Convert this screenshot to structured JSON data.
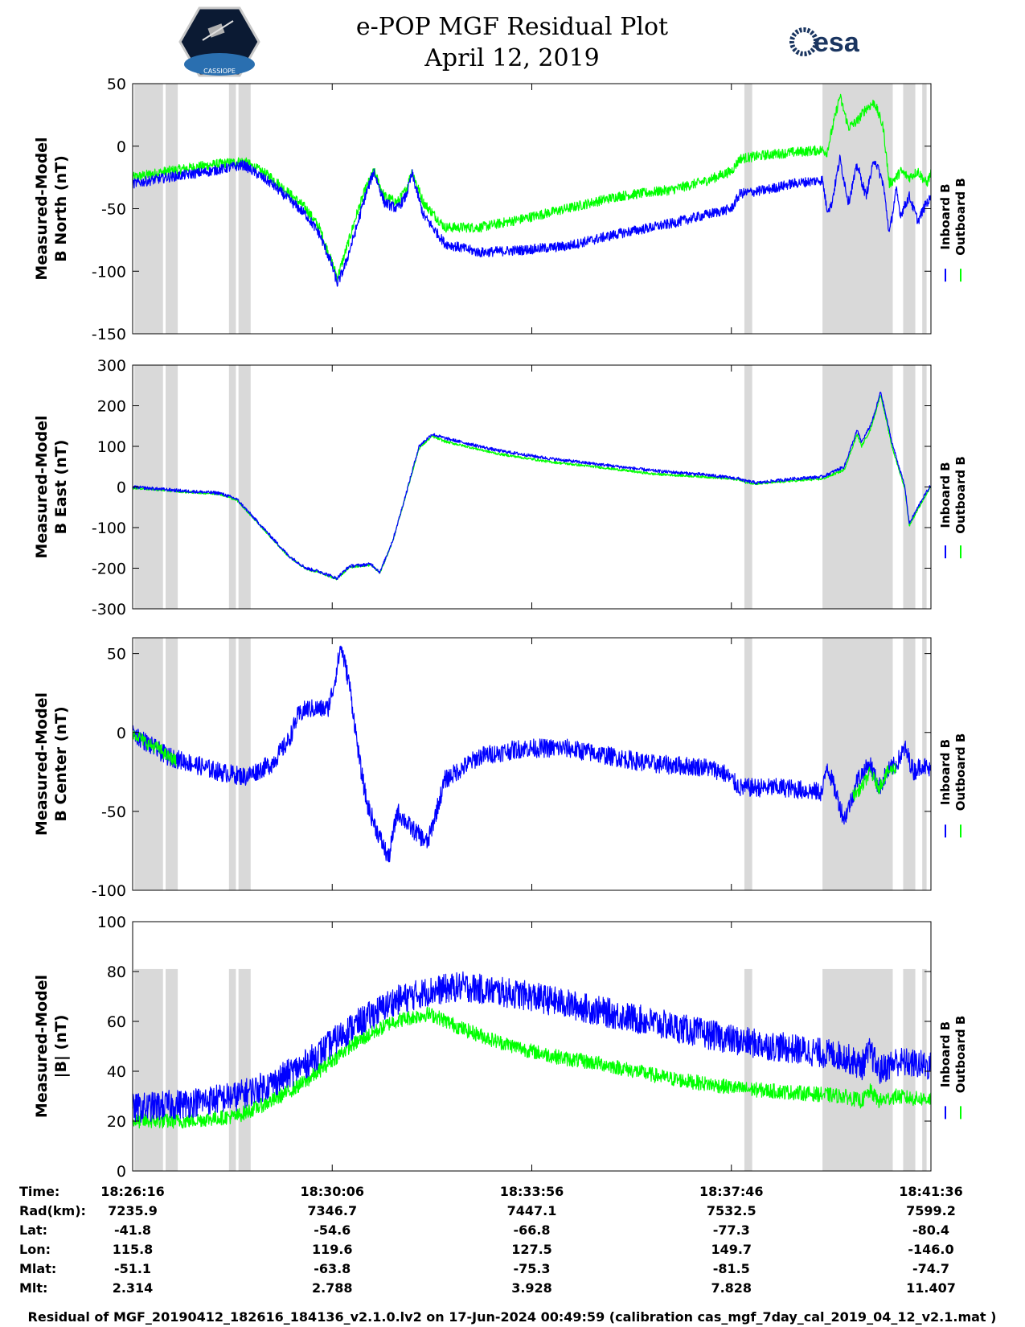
{
  "title": "e-POP MGF Residual Plot",
  "date": "April 12, 2019",
  "logos": {
    "left_text": "CASSIOPE",
    "right_text": "esa"
  },
  "colors": {
    "inboard": "#0000ff",
    "outboard": "#00ff00",
    "shade": "#d9d9d9",
    "cassiope_bg": "#0b1a33"
  },
  "time_axis": {
    "labels": [
      "18:26:16",
      "18:30:06",
      "18:33:56",
      "18:37:46",
      "18:41:36"
    ],
    "range_seconds": [
      0,
      920
    ],
    "tick_seconds": [
      0,
      230,
      460,
      690,
      920
    ],
    "shaded_intervals_seconds": [
      [
        2,
        35
      ],
      [
        38,
        52
      ],
      [
        111,
        119
      ],
      [
        122,
        136
      ],
      [
        705,
        714
      ],
      [
        795,
        876
      ],
      [
        888,
        902
      ],
      [
        910,
        915
      ]
    ]
  },
  "legend": {
    "inboard": "Inboard B",
    "outboard": "Outboard B"
  },
  "chart_data": [
    {
      "type": "line",
      "ylabel": [
        "Measured-Model",
        "B North (nT)"
      ],
      "ylim": [
        -150,
        50
      ],
      "yticks": [
        -150,
        -100,
        -50,
        0,
        50
      ],
      "noise": {
        "inboard": 4,
        "outboard": 4
      },
      "shade_ylim": [
        -150,
        50
      ],
      "series": [
        {
          "name": "Inboard B",
          "x": [
            0,
            40,
            90,
            128,
            160,
            200,
            215,
            228,
            236,
            245,
            258,
            268,
            278,
            290,
            305,
            315,
            322,
            335,
            360,
            400,
            450,
            500,
            560,
            620,
            660,
            690,
            700,
            730,
            760,
            795,
            800,
            805,
            815,
            825,
            835,
            845,
            855,
            865,
            872,
            880,
            885,
            895,
            905,
            915,
            920
          ],
          "values": [
            -30,
            -25,
            -20,
            -15,
            -30,
            -55,
            -70,
            -92,
            -110,
            -95,
            -65,
            -40,
            -20,
            -45,
            -50,
            -40,
            -22,
            -55,
            -78,
            -85,
            -83,
            -80,
            -70,
            -62,
            -55,
            -50,
            -38,
            -35,
            -30,
            -27,
            -50,
            -48,
            -10,
            -45,
            -15,
            -40,
            -10,
            -30,
            -70,
            -35,
            -55,
            -40,
            -60,
            -45,
            -42
          ]
        },
        {
          "name": "Outboard B",
          "x": [
            0,
            40,
            90,
            128,
            160,
            200,
            215,
            228,
            236,
            245,
            258,
            268,
            278,
            290,
            305,
            315,
            322,
            335,
            360,
            400,
            450,
            500,
            560,
            620,
            660,
            690,
            700,
            730,
            760,
            795,
            800,
            805,
            815,
            825,
            835,
            845,
            855,
            865,
            872,
            880,
            885,
            895,
            905,
            915,
            920
          ],
          "values": [
            -25,
            -20,
            -15,
            -12,
            -25,
            -50,
            -65,
            -90,
            -105,
            -85,
            -55,
            -35,
            -20,
            -40,
            -45,
            -35,
            -20,
            -45,
            -65,
            -65,
            -58,
            -50,
            -40,
            -35,
            -28,
            -20,
            -10,
            -7,
            -5,
            -3,
            -5,
            10,
            40,
            15,
            20,
            30,
            35,
            15,
            -30,
            -25,
            -20,
            -25,
            -20,
            -30,
            -22
          ]
        }
      ]
    },
    {
      "type": "line",
      "ylabel": [
        "Measured-Model",
        "B East (nT)"
      ],
      "ylim": [
        -300,
        300
      ],
      "yticks": [
        -300,
        -200,
        -100,
        0,
        100,
        200,
        300
      ],
      "noise": {
        "inboard": 4,
        "outboard": 3
      },
      "shade_ylim": [
        -300,
        300
      ],
      "series": [
        {
          "name": "Inboard B",
          "x": [
            0,
            60,
            100,
            120,
            150,
            180,
            200,
            218,
            235,
            250,
            275,
            285,
            300,
            312,
            330,
            345,
            360,
            420,
            480,
            540,
            600,
            660,
            700,
            705,
            720,
            760,
            795,
            820,
            835,
            840,
            850,
            855,
            862,
            875,
            890,
            895,
            910,
            920
          ],
          "values": [
            0,
            -10,
            -15,
            -30,
            -100,
            -170,
            -200,
            -210,
            -225,
            -195,
            -190,
            -210,
            -130,
            -40,
            100,
            130,
            120,
            90,
            70,
            55,
            40,
            30,
            20,
            15,
            10,
            20,
            25,
            50,
            140,
            110,
            150,
            180,
            235,
            110,
            0,
            -90,
            -30,
            5
          ]
        },
        {
          "name": "Outboard B",
          "x": [
            0,
            60,
            100,
            120,
            150,
            180,
            200,
            218,
            235,
            250,
            275,
            285,
            300,
            312,
            330,
            345,
            360,
            420,
            480,
            540,
            600,
            660,
            700,
            705,
            720,
            760,
            795,
            820,
            835,
            840,
            850,
            855,
            862,
            875,
            890,
            895,
            910,
            920
          ],
          "values": [
            -2,
            -12,
            -17,
            -32,
            -102,
            -172,
            -202,
            -212,
            -227,
            -197,
            -192,
            -212,
            -132,
            -42,
            95,
            125,
            112,
            82,
            62,
            48,
            32,
            25,
            18,
            12,
            8,
            15,
            20,
            42,
            130,
            100,
            140,
            175,
            228,
            100,
            -5,
            -95,
            -35,
            0
          ]
        }
      ]
    },
    {
      "type": "line",
      "ylabel": [
        "Measured-Model",
        "B Center (nT)"
      ],
      "ylim": [
        -100,
        60
      ],
      "yticks": [
        -100,
        -50,
        0,
        50
      ],
      "noise": {
        "inboard": 6,
        "outboard": 4
      },
      "shade_ylim": [
        -100,
        60
      ],
      "series": [
        {
          "name": "Inboard B",
          "x": [
            0,
            20,
            40,
            70,
            100,
            130,
            160,
            180,
            190,
            200,
            225,
            232,
            240,
            250,
            262,
            270,
            280,
            295,
            305,
            320,
            340,
            360,
            400,
            450,
            500,
            550,
            600,
            660,
            680,
            700,
            750,
            795,
            800,
            820,
            830,
            835,
            850,
            860,
            870,
            880,
            890,
            900,
            910,
            920
          ],
          "values": [
            0,
            -8,
            -15,
            -20,
            -25,
            -28,
            -20,
            -5,
            10,
            15,
            15,
            30,
            55,
            30,
            -20,
            -45,
            -60,
            -80,
            -50,
            -60,
            -70,
            -30,
            -15,
            -10,
            -10,
            -15,
            -20,
            -22,
            -25,
            -35,
            -35,
            -38,
            -20,
            -55,
            -40,
            -30,
            -20,
            -35,
            -25,
            -20,
            -10,
            -25,
            -20,
            -25
          ]
        },
        {
          "name": "Outboard B",
          "x": [
            0,
            10,
            20,
            30,
            40,
            50,
            52,
            825,
            830,
            840,
            850,
            860,
            870,
            880
          ],
          "values": [
            0,
            -4,
            -8,
            -10,
            -15,
            -18,
            null,
            null,
            -40,
            -35,
            -25,
            -35,
            -25,
            -22
          ]
        }
      ]
    },
    {
      "type": "line",
      "ylabel": [
        "Measured-Model",
        "|B| (nT)"
      ],
      "ylim": [
        0,
        100
      ],
      "yticks": [
        0,
        20,
        40,
        60,
        80,
        100
      ],
      "noise": {
        "inboard": 6,
        "outboard": 3
      },
      "shade_ylim": [
        0,
        81
      ],
      "series": [
        {
          "name": "Inboard B",
          "x": [
            0,
            60,
            120,
            160,
            200,
            250,
            300,
            340,
            380,
            420,
            460,
            500,
            540,
            580,
            620,
            660,
            700,
            740,
            780,
            820,
            840,
            850,
            860,
            880,
            900,
            920
          ],
          "values": [
            25,
            27,
            30,
            35,
            43,
            57,
            68,
            72,
            74,
            72,
            70,
            67,
            64,
            61,
            58,
            55,
            52,
            50,
            48,
            46,
            42,
            48,
            40,
            44,
            43,
            42
          ]
        },
        {
          "name": "Outboard B",
          "x": [
            0,
            60,
            120,
            160,
            200,
            250,
            300,
            340,
            350,
            380,
            420,
            460,
            500,
            540,
            580,
            620,
            660,
            700,
            740,
            780,
            820,
            840,
            850,
            860,
            880,
            900,
            920
          ],
          "values": [
            20,
            20,
            22,
            28,
            36,
            50,
            60,
            63,
            62,
            57,
            52,
            48,
            45,
            43,
            40,
            37,
            35,
            33,
            32,
            31,
            30,
            28,
            32,
            28,
            30,
            29,
            29
          ]
        }
      ]
    }
  ],
  "ephemeris": {
    "rows": [
      {
        "label": "Time:",
        "values": [
          "18:26:16",
          "18:30:06",
          "18:33:56",
          "18:37:46",
          "18:41:36"
        ]
      },
      {
        "label": "Rad(km):",
        "values": [
          "7235.9",
          "7346.7",
          "7447.1",
          "7532.5",
          "7599.2"
        ]
      },
      {
        "label": "Lat:",
        "values": [
          "-41.8",
          "-54.6",
          "-66.8",
          "-77.3",
          "-80.4"
        ]
      },
      {
        "label": "Lon:",
        "values": [
          "115.8",
          "119.6",
          "127.5",
          "149.7",
          "-146.0"
        ]
      },
      {
        "label": "Mlat:",
        "values": [
          "-51.1",
          "-63.8",
          "-75.3",
          "-81.5",
          "-74.7"
        ]
      },
      {
        "label": "Mlt:",
        "values": [
          "2.314",
          "2.788",
          "3.928",
          "7.828",
          "11.407"
        ]
      }
    ]
  },
  "footer": "Residual of MGF_20190412_182616_184136_v2.1.0.lv2 on 17-Jun-2024 00:49:59 (calibration cas_mgf_7day_cal_2019_04_12_v2.1.mat )"
}
